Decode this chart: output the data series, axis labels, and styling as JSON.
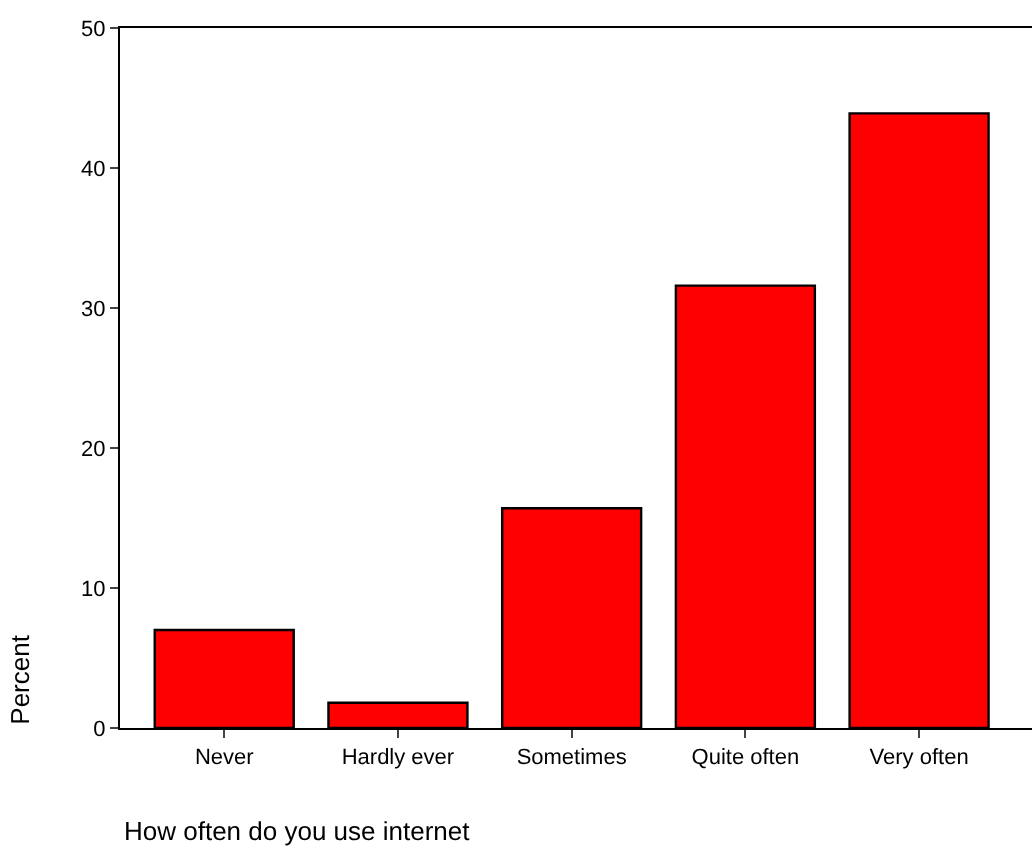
{
  "chart_data": {
    "type": "bar",
    "xlabel": "How often do you use internet",
    "ylabel": "Percent",
    "categories": [
      "Never",
      "Hardly ever",
      "Sometimes",
      "Quite often",
      "Very often"
    ],
    "values": [
      7.0,
      1.8,
      15.7,
      31.6,
      43.9
    ],
    "color": "#ff0000",
    "ylim": [
      0,
      50
    ],
    "yticks": [
      0,
      10,
      20,
      30,
      40,
      50
    ],
    "legend": false
  }
}
